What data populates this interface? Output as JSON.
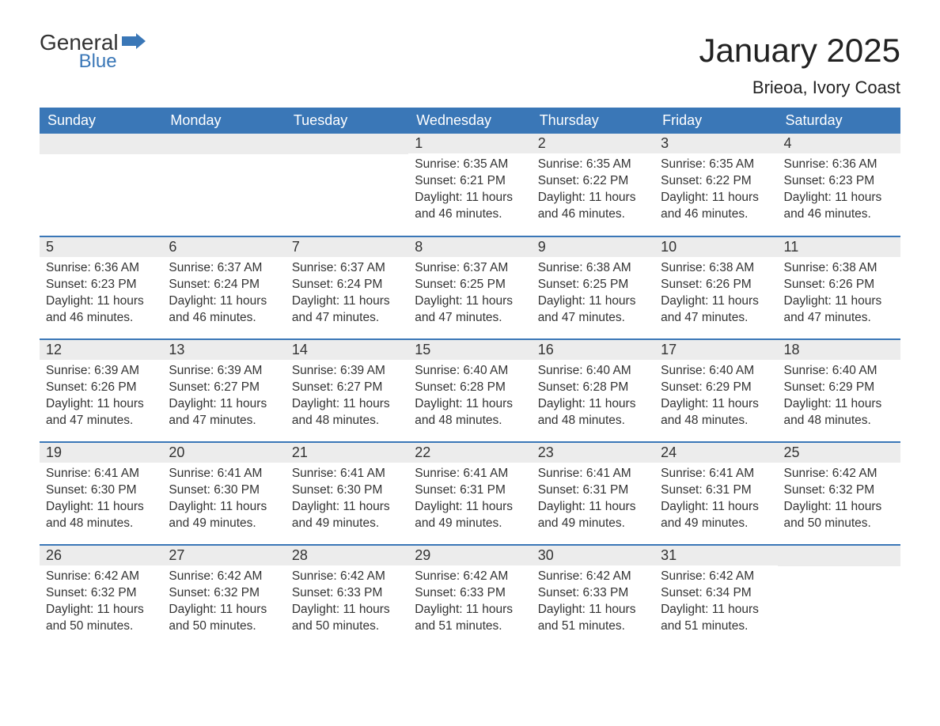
{
  "logo": {
    "general": "General",
    "blue": "Blue"
  },
  "title": "January 2025",
  "location": "Brieoa, Ivory Coast",
  "colors": {
    "header_bg": "#3a77b7",
    "header_text": "#ffffff",
    "daynum_bg": "#ececec",
    "row_divider": "#3a77b7",
    "text": "#333333",
    "background": "#ffffff"
  },
  "layout": {
    "columns": 7,
    "rows": 5,
    "th_fontsize": 18,
    "daynum_fontsize": 18,
    "body_fontsize": 15.5,
    "title_fontsize": 42,
    "location_fontsize": 22
  },
  "weekdays": [
    "Sunday",
    "Monday",
    "Tuesday",
    "Wednesday",
    "Thursday",
    "Friday",
    "Saturday"
  ],
  "weeks": [
    [
      null,
      null,
      null,
      {
        "n": "1",
        "sr": "Sunrise: 6:35 AM",
        "ss": "Sunset: 6:21 PM",
        "dl": "Daylight: 11 hours and 46 minutes."
      },
      {
        "n": "2",
        "sr": "Sunrise: 6:35 AM",
        "ss": "Sunset: 6:22 PM",
        "dl": "Daylight: 11 hours and 46 minutes."
      },
      {
        "n": "3",
        "sr": "Sunrise: 6:35 AM",
        "ss": "Sunset: 6:22 PM",
        "dl": "Daylight: 11 hours and 46 minutes."
      },
      {
        "n": "4",
        "sr": "Sunrise: 6:36 AM",
        "ss": "Sunset: 6:23 PM",
        "dl": "Daylight: 11 hours and 46 minutes."
      }
    ],
    [
      {
        "n": "5",
        "sr": "Sunrise: 6:36 AM",
        "ss": "Sunset: 6:23 PM",
        "dl": "Daylight: 11 hours and 46 minutes."
      },
      {
        "n": "6",
        "sr": "Sunrise: 6:37 AM",
        "ss": "Sunset: 6:24 PM",
        "dl": "Daylight: 11 hours and 46 minutes."
      },
      {
        "n": "7",
        "sr": "Sunrise: 6:37 AM",
        "ss": "Sunset: 6:24 PM",
        "dl": "Daylight: 11 hours and 47 minutes."
      },
      {
        "n": "8",
        "sr": "Sunrise: 6:37 AM",
        "ss": "Sunset: 6:25 PM",
        "dl": "Daylight: 11 hours and 47 minutes."
      },
      {
        "n": "9",
        "sr": "Sunrise: 6:38 AM",
        "ss": "Sunset: 6:25 PM",
        "dl": "Daylight: 11 hours and 47 minutes."
      },
      {
        "n": "10",
        "sr": "Sunrise: 6:38 AM",
        "ss": "Sunset: 6:26 PM",
        "dl": "Daylight: 11 hours and 47 minutes."
      },
      {
        "n": "11",
        "sr": "Sunrise: 6:38 AM",
        "ss": "Sunset: 6:26 PM",
        "dl": "Daylight: 11 hours and 47 minutes."
      }
    ],
    [
      {
        "n": "12",
        "sr": "Sunrise: 6:39 AM",
        "ss": "Sunset: 6:26 PM",
        "dl": "Daylight: 11 hours and 47 minutes."
      },
      {
        "n": "13",
        "sr": "Sunrise: 6:39 AM",
        "ss": "Sunset: 6:27 PM",
        "dl": "Daylight: 11 hours and 47 minutes."
      },
      {
        "n": "14",
        "sr": "Sunrise: 6:39 AM",
        "ss": "Sunset: 6:27 PM",
        "dl": "Daylight: 11 hours and 48 minutes."
      },
      {
        "n": "15",
        "sr": "Sunrise: 6:40 AM",
        "ss": "Sunset: 6:28 PM",
        "dl": "Daylight: 11 hours and 48 minutes."
      },
      {
        "n": "16",
        "sr": "Sunrise: 6:40 AM",
        "ss": "Sunset: 6:28 PM",
        "dl": "Daylight: 11 hours and 48 minutes."
      },
      {
        "n": "17",
        "sr": "Sunrise: 6:40 AM",
        "ss": "Sunset: 6:29 PM",
        "dl": "Daylight: 11 hours and 48 minutes."
      },
      {
        "n": "18",
        "sr": "Sunrise: 6:40 AM",
        "ss": "Sunset: 6:29 PM",
        "dl": "Daylight: 11 hours and 48 minutes."
      }
    ],
    [
      {
        "n": "19",
        "sr": "Sunrise: 6:41 AM",
        "ss": "Sunset: 6:30 PM",
        "dl": "Daylight: 11 hours and 48 minutes."
      },
      {
        "n": "20",
        "sr": "Sunrise: 6:41 AM",
        "ss": "Sunset: 6:30 PM",
        "dl": "Daylight: 11 hours and 49 minutes."
      },
      {
        "n": "21",
        "sr": "Sunrise: 6:41 AM",
        "ss": "Sunset: 6:30 PM",
        "dl": "Daylight: 11 hours and 49 minutes."
      },
      {
        "n": "22",
        "sr": "Sunrise: 6:41 AM",
        "ss": "Sunset: 6:31 PM",
        "dl": "Daylight: 11 hours and 49 minutes."
      },
      {
        "n": "23",
        "sr": "Sunrise: 6:41 AM",
        "ss": "Sunset: 6:31 PM",
        "dl": "Daylight: 11 hours and 49 minutes."
      },
      {
        "n": "24",
        "sr": "Sunrise: 6:41 AM",
        "ss": "Sunset: 6:31 PM",
        "dl": "Daylight: 11 hours and 49 minutes."
      },
      {
        "n": "25",
        "sr": "Sunrise: 6:42 AM",
        "ss": "Sunset: 6:32 PM",
        "dl": "Daylight: 11 hours and 50 minutes."
      }
    ],
    [
      {
        "n": "26",
        "sr": "Sunrise: 6:42 AM",
        "ss": "Sunset: 6:32 PM",
        "dl": "Daylight: 11 hours and 50 minutes."
      },
      {
        "n": "27",
        "sr": "Sunrise: 6:42 AM",
        "ss": "Sunset: 6:32 PM",
        "dl": "Daylight: 11 hours and 50 minutes."
      },
      {
        "n": "28",
        "sr": "Sunrise: 6:42 AM",
        "ss": "Sunset: 6:33 PM",
        "dl": "Daylight: 11 hours and 50 minutes."
      },
      {
        "n": "29",
        "sr": "Sunrise: 6:42 AM",
        "ss": "Sunset: 6:33 PM",
        "dl": "Daylight: 11 hours and 51 minutes."
      },
      {
        "n": "30",
        "sr": "Sunrise: 6:42 AM",
        "ss": "Sunset: 6:33 PM",
        "dl": "Daylight: 11 hours and 51 minutes."
      },
      {
        "n": "31",
        "sr": "Sunrise: 6:42 AM",
        "ss": "Sunset: 6:34 PM",
        "dl": "Daylight: 11 hours and 51 minutes."
      },
      null
    ]
  ]
}
